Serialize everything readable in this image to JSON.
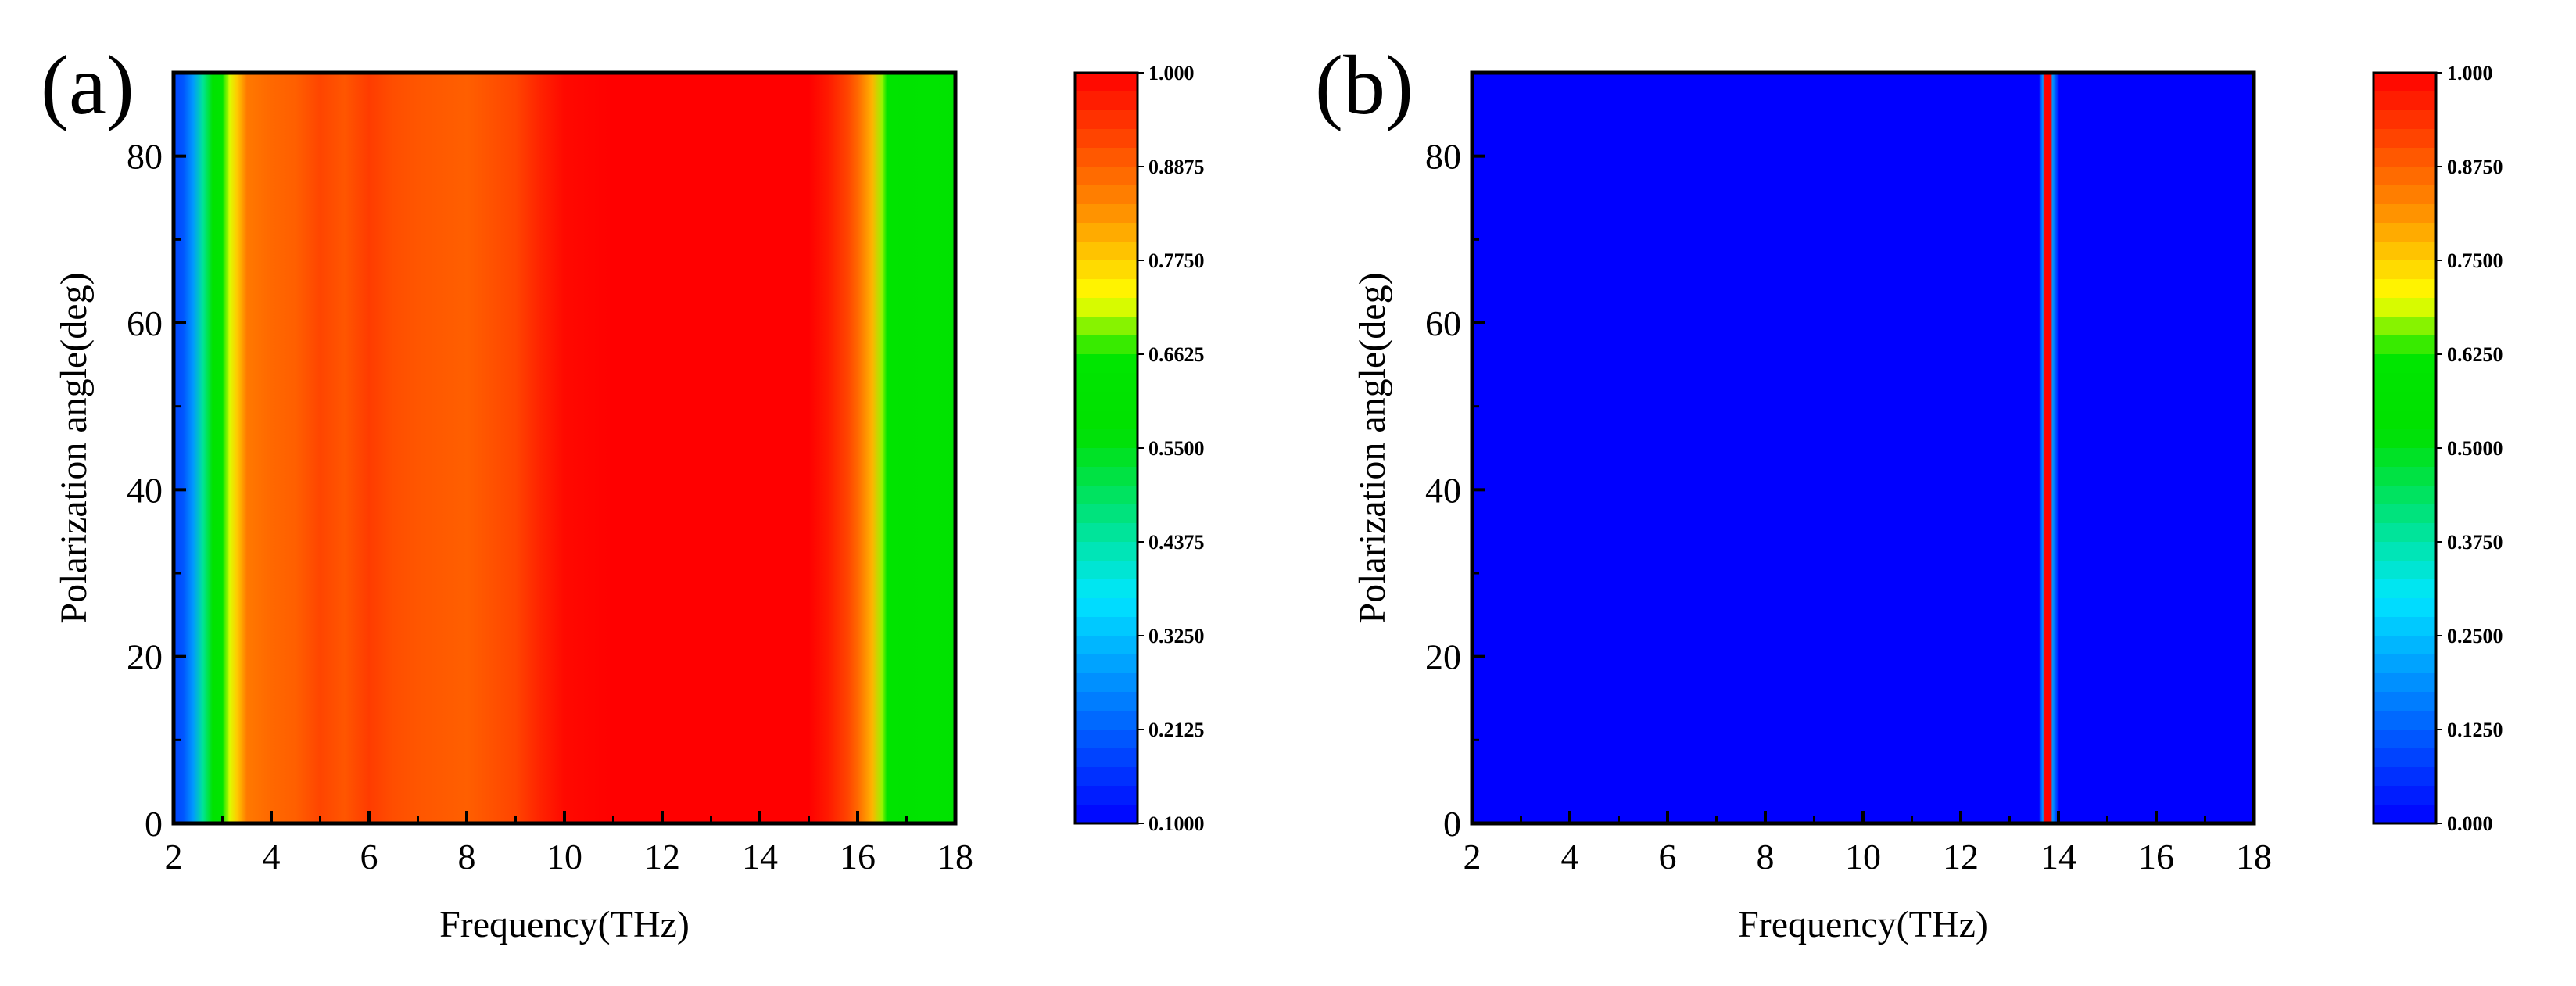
{
  "chart_data": [
    {
      "type": "heatmap",
      "panel_label": "(a)",
      "title": "",
      "xlabel": "Frequency(THz)",
      "ylabel": "Polarization angle(deg)",
      "xlim": [
        2,
        18
      ],
      "ylim": [
        0,
        90
      ],
      "xticks": [
        "2",
        "4",
        "6",
        "8",
        "10",
        "12",
        "14",
        "16",
        "18"
      ],
      "yticks": [
        "0",
        "20",
        "40",
        "60",
        "80"
      ],
      "grid": false,
      "colorbar": {
        "min": 0.1,
        "max": 1.0,
        "ticks": [
          "0.1000",
          "0.2125",
          "0.3250",
          "0.4375",
          "0.5500",
          "0.6625",
          "0.7750",
          "0.8875",
          "1.000"
        ]
      },
      "profile_frequency": [
        2.0,
        2.2,
        2.4,
        2.6,
        2.8,
        3.0,
        3.15,
        3.3,
        3.5,
        4.0,
        4.5,
        5.0,
        5.5,
        6.0,
        6.5,
        7.0,
        8.0,
        9.0,
        9.5,
        10.0,
        11.0,
        12.0,
        13.0,
        14.0,
        15.0,
        15.4,
        15.8,
        16.0,
        16.3,
        16.5,
        16.6,
        17.0,
        17.5,
        17.8,
        18.0
      ],
      "profile_value": [
        0.18,
        0.2,
        0.28,
        0.45,
        0.6,
        0.65,
        0.72,
        0.78,
        0.86,
        0.88,
        0.89,
        0.92,
        0.9,
        0.93,
        0.91,
        0.9,
        0.89,
        0.92,
        0.96,
        0.99,
        1.0,
        1.0,
        1.0,
        1.0,
        1.0,
        0.97,
        0.92,
        0.88,
        0.8,
        0.7,
        0.63,
        0.6,
        0.62,
        0.6,
        0.58
      ],
      "angle_dependence": "none"
    },
    {
      "type": "heatmap",
      "panel_label": "(b)",
      "title": "",
      "xlabel": "Frequency(THz)",
      "ylabel": "Polarization angle(deg)",
      "xlim": [
        2,
        18
      ],
      "ylim": [
        0,
        90
      ],
      "xticks": [
        "2",
        "4",
        "6",
        "8",
        "10",
        "12",
        "14",
        "16",
        "18"
      ],
      "yticks": [
        "0",
        "20",
        "40",
        "60",
        "80"
      ],
      "grid": false,
      "colorbar": {
        "min": 0.0,
        "max": 1.0,
        "ticks": [
          "0.000",
          "0.1250",
          "0.2500",
          "0.3750",
          "0.5000",
          "0.6250",
          "0.7500",
          "0.8750",
          "1.000"
        ]
      },
      "profile_frequency": [
        2.0,
        13.6,
        13.68,
        13.72,
        13.84,
        13.88,
        13.95,
        14.02,
        18.0
      ],
      "profile_value": [
        0.0,
        0.0,
        0.2,
        1.0,
        1.0,
        0.2,
        0.1,
        0.0,
        0.0
      ],
      "angle_dependence": "none"
    }
  ]
}
